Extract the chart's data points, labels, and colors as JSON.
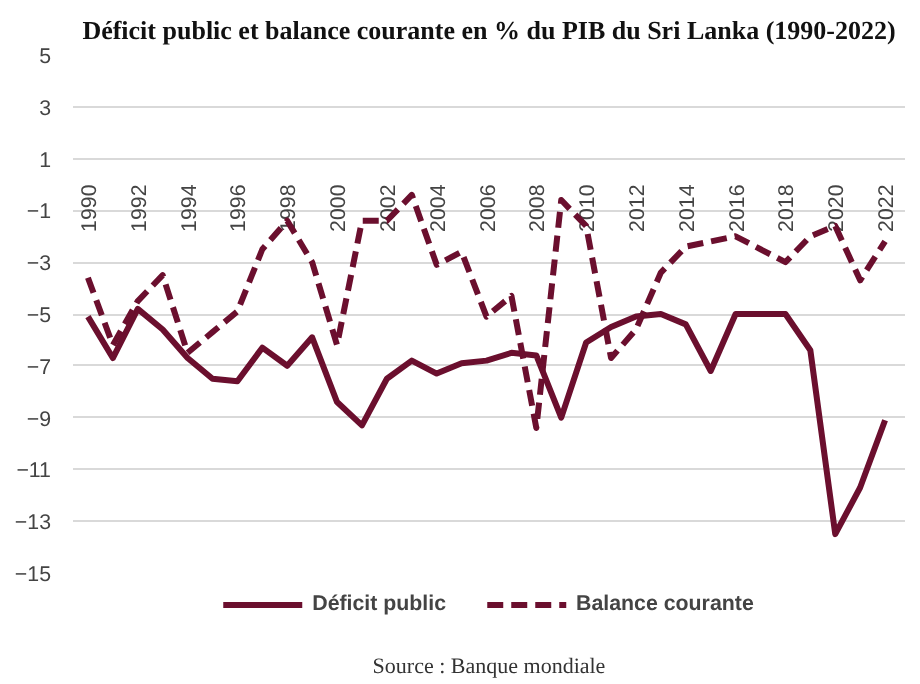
{
  "chart_data": {
    "type": "line",
    "title": "Déficit public et balance courante en % du PIB du Sri Lanka (1990-2022)",
    "x": [
      1990,
      1991,
      1992,
      1993,
      1994,
      1995,
      1996,
      1997,
      1998,
      1999,
      2000,
      2001,
      2002,
      2003,
      2004,
      2005,
      2006,
      2007,
      2008,
      2009,
      2010,
      2011,
      2012,
      2013,
      2014,
      2015,
      2016,
      2017,
      2018,
      2019,
      2020,
      2021,
      2022
    ],
    "series": [
      {
        "name": "Déficit public",
        "color": "#6b0f2e",
        "line_style": "solid",
        "values": [
          -5.1,
          -6.7,
          -4.8,
          -5.6,
          -6.7,
          -7.5,
          -7.6,
          -6.3,
          -7.0,
          -5.9,
          -8.4,
          -9.3,
          -7.5,
          -6.8,
          -7.3,
          -6.9,
          -6.8,
          -6.5,
          -6.6,
          -9.0,
          -6.1,
          -5.5,
          -5.1,
          -5.0,
          -5.4,
          -7.2,
          -5.0,
          -5.0,
          -5.0,
          -6.4,
          -13.5,
          -11.7,
          -9.1
        ]
      },
      {
        "name": "Balance courante",
        "color": "#6b0f2e",
        "line_style": "dashed",
        "values": [
          -3.6,
          -6.2,
          -4.5,
          -3.5,
          -6.5,
          -5.7,
          -4.9,
          -2.5,
          -1.4,
          -3.0,
          -6.2,
          -1.4,
          -1.4,
          -0.4,
          -3.1,
          -2.6,
          -5.1,
          -4.3,
          -9.4,
          -0.6,
          -1.6,
          -6.7,
          -5.6,
          -3.4,
          -2.4,
          -2.2,
          -2.0,
          -2.5,
          -3.0,
          -2.0,
          -1.6,
          -3.7,
          -2.2
        ]
      }
    ],
    "xlim": [
      1989.4,
      2022.8
    ],
    "xticks": [
      1990,
      1992,
      1994,
      1996,
      1998,
      2000,
      2002,
      2004,
      2006,
      2008,
      2010,
      2012,
      2014,
      2016,
      2018,
      2020,
      2022
    ],
    "ylim": [
      -15,
      5
    ],
    "yticks": [
      5,
      3,
      1,
      -1,
      -3,
      -5,
      -7,
      -9,
      -11,
      -13,
      -15
    ],
    "grid": "y",
    "legend": "bottom",
    "marker": "none",
    "annotations": [
      "Source : Banque mondiale"
    ]
  }
}
